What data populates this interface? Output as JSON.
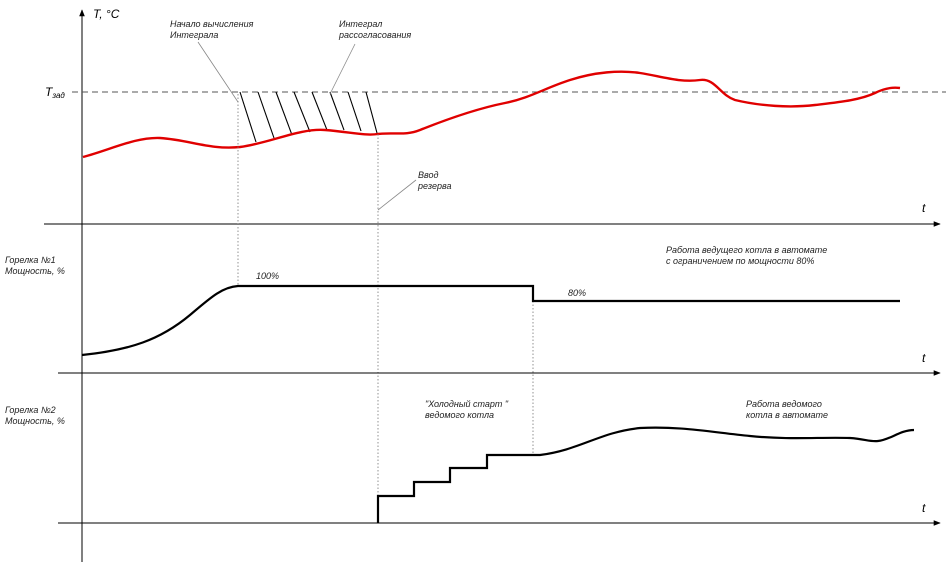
{
  "top_panel": {
    "y_axis_label": "T, °C",
    "setpoint_label_main": "T",
    "setpoint_label_sub": "зад",
    "t_label": "t",
    "annotation_integral_start_line1": "Начало вычисления",
    "annotation_integral_start_line2": "Интеграла",
    "annotation_integral_line1": "Интеграл",
    "annotation_integral_line2": "рассогласования",
    "annotation_reserve_line1": "Ввод",
    "annotation_reserve_line2": "резерва"
  },
  "middle_panel": {
    "y_label_line1": "Горелка №1",
    "y_label_line2": "Мощность, %",
    "t_label": "t",
    "level_100": "100%",
    "level_80": "80%",
    "note_line1": "Работа ведущего котла в автомате",
    "note_line2": "с ограничением по мощности 80%"
  },
  "bottom_panel": {
    "y_label_line1": "Горелка №2",
    "y_label_line2": "Мощность, %",
    "t_label": "t",
    "cold_start_line1": "\"Холодный старт \"",
    "cold_start_line2": "ведомого котла",
    "auto_line1": "Работа ведомого",
    "auto_line2": "котла в автомате"
  },
  "colors": {
    "temperature_curve": "#e00000",
    "power_curves": "#000000"
  }
}
